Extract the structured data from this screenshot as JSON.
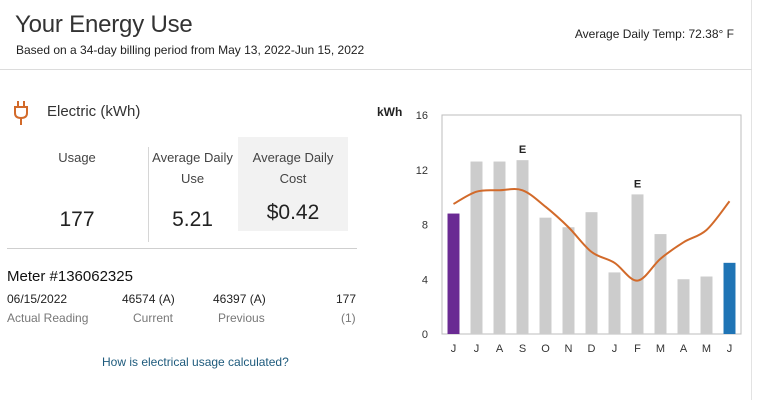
{
  "header": {
    "title": "Your Energy Use",
    "subtitle": "Based on a 34-day billing period from May 13, 2022-Jun 15, 2022",
    "avg_temp": "Average Daily Temp: 72.38° F"
  },
  "electric": {
    "icon": "plug-icon",
    "label": "Electric (kWh)",
    "usage_label": "Usage",
    "usage_value": "177",
    "avg_daily_label_line1": "Average Daily",
    "avg_daily_label_line2": "Use",
    "avg_daily_value": "5.21",
    "avg_cost_label": "Average Daily Cost",
    "avg_cost_value": "$0.42"
  },
  "meter": {
    "title": "Meter #136062325",
    "date": "06/15/2022",
    "date_sub": "Actual Reading",
    "current": "46574 (A)",
    "current_sub": "Current",
    "previous": "46397 (A)",
    "previous_sub": "Previous",
    "kwh": "177",
    "kwh_sub": "(1)"
  },
  "link": {
    "label": "How is electrical usage calculated?"
  },
  "colors": {
    "bar_default": "#cccccc",
    "bar_first": "#6a2a93",
    "bar_last": "#1f74b5",
    "temp_line": "#d26a2a",
    "link": "#1d5a7c"
  },
  "chart_data": {
    "type": "bar",
    "ylabel": "kWh",
    "ylim": [
      0,
      16
    ],
    "yticks": [
      0,
      4,
      8,
      12,
      16
    ],
    "categories": [
      "J",
      "J",
      "A",
      "S",
      "O",
      "N",
      "D",
      "J",
      "F",
      "M",
      "A",
      "M",
      "J"
    ],
    "values": [
      8.8,
      12.6,
      12.6,
      12.7,
      8.5,
      7.8,
      8.9,
      4.5,
      10.2,
      7.3,
      4.0,
      4.2,
      5.2
    ],
    "annotations": [
      "",
      "",
      "",
      "E",
      "",
      "",
      "",
      "",
      "E",
      "",
      "",
      "",
      ""
    ],
    "highlight": {
      "first": 0,
      "last": 12
    },
    "temperature_line": [
      9.5,
      10.4,
      10.5,
      10.5,
      9.3,
      7.8,
      6.0,
      5.2,
      3.9,
      5.5,
      6.7,
      7.6,
      9.7
    ],
    "grid": false
  }
}
